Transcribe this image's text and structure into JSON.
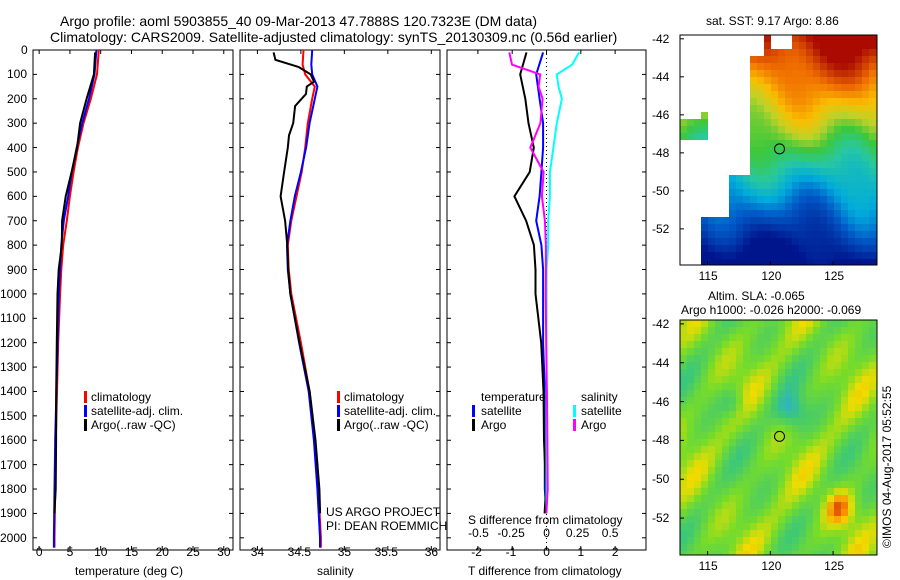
{
  "title": {
    "line1": "Argo profile: aoml 5903855_40 09-Mar-2013 47.7888S 120.7323E (DM data)",
    "line2": "Climatology: CARS2009. Satellite-adjusted climatology: synTS_20130309.nc (0.56d earlier)"
  },
  "colors": {
    "climatology": "#ff0000",
    "satellite": "#0000ff",
    "argo": "#000000",
    "argo_s": "#ff00ff",
    "satellite_s": "#00ffff",
    "axis": "#000000"
  },
  "depth_axis": {
    "ylim": [
      2050,
      0
    ],
    "ticks": [
      "0",
      "100",
      "200",
      "300",
      "400",
      "500",
      "600",
      "700",
      "800",
      "900",
      "1000",
      "1100",
      "1200",
      "1300",
      "1400",
      "1500",
      "1600",
      "1700",
      "1800",
      "1900",
      "2000"
    ]
  },
  "chart_data": [
    {
      "type": "line",
      "name": "temperature",
      "xlabel": "temperature (deg C)",
      "xlim": [
        -1,
        31.5
      ],
      "xticks": [
        "0",
        "5",
        "10",
        "15",
        "20",
        "25",
        "30"
      ],
      "xtick_values": [
        0,
        5,
        10,
        15,
        20,
        25,
        30
      ],
      "legend": [
        "climatology",
        "satellite-adj. clim.",
        "Argo(..raw -QC)"
      ],
      "series": [
        {
          "name": "climatology",
          "depth": [
            0,
            100,
            200,
            300,
            400,
            500,
            600,
            700,
            800,
            900,
            1000,
            1200,
            1400,
            1600,
            1800,
            2000,
            2040
          ],
          "values": [
            9.7,
            9.4,
            8.4,
            7.2,
            6.3,
            5.6,
            5.0,
            4.5,
            3.9,
            3.6,
            3.4,
            3.1,
            2.9,
            2.7,
            2.6,
            2.5,
            2.5
          ]
        },
        {
          "name": "satellite-adj. clim.",
          "depth": [
            0,
            100,
            200,
            300,
            400,
            500,
            600,
            700,
            800,
            900,
            1000,
            1200,
            1400,
            1600,
            1800,
            2000,
            2040
          ],
          "values": [
            9.3,
            9.0,
            8.1,
            7.0,
            6.1,
            5.3,
            4.7,
            4.0,
            3.6,
            3.4,
            3.2,
            3.0,
            2.8,
            2.6,
            2.5,
            2.4,
            2.4
          ]
        },
        {
          "name": "Argo(..raw -QC)",
          "depth": [
            10,
            100,
            200,
            300,
            400,
            500,
            600,
            700,
            800,
            900,
            1000,
            1200,
            1400,
            1600,
            1800,
            1900
          ],
          "values": [
            9.0,
            8.7,
            7.8,
            6.8,
            6.0,
            5.2,
            4.5,
            3.7,
            3.5,
            3.3,
            3.1,
            2.9,
            2.7,
            2.6,
            2.5,
            2.5
          ]
        }
      ]
    },
    {
      "type": "line",
      "name": "salinity",
      "xlabel": "salinity",
      "xlim": [
        33.8,
        36.1
      ],
      "xticks": [
        "34",
        "34.5",
        "35",
        "35.5",
        "36"
      ],
      "xtick_values": [
        34,
        34.5,
        35,
        35.5,
        36
      ],
      "legend": [
        "climatology",
        "satellite-adj. clim.",
        "Argo(..raw -QC)"
      ],
      "annotation": [
        "US ARGO PROJECT",
        "PI: DEAN ROEMMICH"
      ],
      "series": [
        {
          "name": "climatology",
          "depth": [
            0,
            60,
            100,
            150,
            200,
            300,
            400,
            500,
            600,
            700,
            800,
            900,
            1000,
            1200,
            1400,
            1600,
            1800,
            2000,
            2040
          ],
          "values": [
            34.53,
            34.52,
            34.55,
            34.66,
            34.63,
            34.58,
            34.55,
            34.51,
            34.45,
            34.39,
            34.35,
            34.36,
            34.39,
            34.5,
            34.6,
            34.66,
            34.7,
            34.73,
            34.73
          ]
        },
        {
          "name": "satellite-adj. clim.",
          "depth": [
            0,
            60,
            100,
            150,
            200,
            300,
            400,
            500,
            600,
            700,
            800,
            900,
            1000,
            1200,
            1400,
            1600,
            1800,
            2000,
            2040
          ],
          "values": [
            34.63,
            34.62,
            34.63,
            34.69,
            34.66,
            34.6,
            34.56,
            34.5,
            34.43,
            34.38,
            34.34,
            34.35,
            34.38,
            34.48,
            34.59,
            34.65,
            34.69,
            34.72,
            34.72
          ]
        },
        {
          "name": "Argo(..raw -QC)",
          "depth": [
            10,
            40,
            70,
            100,
            130,
            150,
            180,
            230,
            300,
            350,
            400,
            500,
            600,
            700,
            800,
            900,
            1000,
            1200,
            1400,
            1600,
            1800,
            1900
          ],
          "values": [
            34.18,
            34.22,
            34.48,
            34.6,
            34.65,
            34.58,
            34.55,
            34.42,
            34.4,
            34.35,
            34.34,
            34.3,
            34.28,
            34.32,
            34.33,
            34.36,
            34.39,
            34.49,
            34.6,
            34.66,
            34.7,
            34.72
          ]
        }
      ]
    },
    {
      "type": "line",
      "name": "difference",
      "xlabel": "T difference from climatology",
      "xlabel2": "S difference from climatology",
      "xlim": [
        -2.9,
        2.9
      ],
      "xticks": [
        "-2",
        "-1",
        "0",
        "1",
        "2"
      ],
      "xtick_values": [
        -2,
        -1,
        0,
        1,
        2
      ],
      "sticks": [
        "-0.5",
        "-0.25",
        "0",
        "0.25",
        "0.5"
      ],
      "stick_values": [
        -1.9,
        -0.95,
        0,
        0.95,
        1.9
      ],
      "legend_t": {
        "title": "temperature",
        "items": [
          "satellite",
          "Argo"
        ]
      },
      "legend_s": {
        "title": "salinity",
        "items": [
          "satellite",
          "Argo"
        ]
      },
      "series": [
        {
          "name": "T satellite",
          "depth": [
            10,
            100,
            200,
            300,
            400,
            500,
            600,
            700,
            800,
            900,
            1000,
            1200,
            1400,
            1600,
            1800,
            1900
          ],
          "values": [
            -0.1,
            -0.3,
            -0.2,
            -0.1,
            -0.1,
            -0.15,
            -0.2,
            -0.3,
            -0.15,
            -0.1,
            -0.1,
            -0.1,
            -0.05,
            -0.05,
            -0.05,
            0
          ]
        },
        {
          "name": "T Argo",
          "depth": [
            10,
            100,
            200,
            300,
            400,
            500,
            600,
            700,
            800,
            900,
            1000,
            1200,
            1400,
            1600,
            1800,
            1900
          ],
          "values": [
            -0.6,
            -0.8,
            -0.6,
            -0.5,
            -0.4,
            -0.5,
            -0.9,
            -0.6,
            -0.4,
            -0.3,
            -0.3,
            -0.15,
            -0.1,
            -0.1,
            -0.05,
            -0.05
          ]
        },
        {
          "name": "S satellite",
          "depth": [
            10,
            60,
            100,
            150,
            200,
            300,
            400,
            500,
            600,
            700,
            800,
            900,
            1000,
            1200,
            1400,
            1600,
            1800,
            1900
          ],
          "values": [
            0.95,
            0.75,
            0.3,
            0.35,
            0.45,
            0.3,
            0.2,
            0.1,
            0.1,
            0.05,
            0.05,
            0.0,
            0.0,
            0.0,
            0.0,
            0.0,
            0.0,
            0.0
          ]
        },
        {
          "name": "S Argo",
          "depth": [
            10,
            60,
            100,
            150,
            200,
            300,
            400,
            500,
            600,
            700,
            800,
            900,
            1000,
            1200,
            1400,
            1600,
            1800,
            1900
          ],
          "values": [
            -1.1,
            -1.0,
            -0.15,
            -0.2,
            -0.1,
            -0.15,
            -0.5,
            -0.1,
            -0.1,
            -0.05,
            -0.05,
            0.0,
            0.0,
            0.0,
            0.0,
            0.0,
            0.0,
            0.0
          ]
        }
      ]
    },
    {
      "type": "heatmap",
      "name": "sst-map",
      "title": "sat. SST: 9.17 Argo: 8.86",
      "xticks": [
        "115",
        "120",
        "125"
      ],
      "xtick_values": [
        115,
        120,
        125
      ],
      "yticks": [
        "-42",
        "-44",
        "-46",
        "-48",
        "-50",
        "-52"
      ],
      "ytick_values": [
        -42,
        -44,
        -46,
        -48,
        -50,
        -52
      ],
      "xlim": [
        112.8,
        128.5
      ],
      "ylim": [
        -53.9,
        -41.8
      ],
      "marker": [
        120.73,
        -47.79
      ]
    },
    {
      "type": "heatmap",
      "name": "sla-map",
      "title": "Altim. SLA: -0.065",
      "title2": "Argo h1000: -0.026 h2000: -0.069",
      "xticks": [
        "115",
        "120",
        "125"
      ],
      "xtick_values": [
        115,
        120,
        125
      ],
      "yticks": [
        "-42",
        "-44",
        "-46",
        "-48",
        "-50",
        "-52"
      ],
      "ytick_values": [
        -42,
        -44,
        -46,
        -48,
        -50,
        -52
      ],
      "xlim": [
        112.8,
        128.5
      ],
      "ylim": [
        -53.9,
        -41.8
      ],
      "marker": [
        120.73,
        -47.79
      ]
    }
  ],
  "credit": "©IMOS 04-Aug-2017 05:52:55"
}
